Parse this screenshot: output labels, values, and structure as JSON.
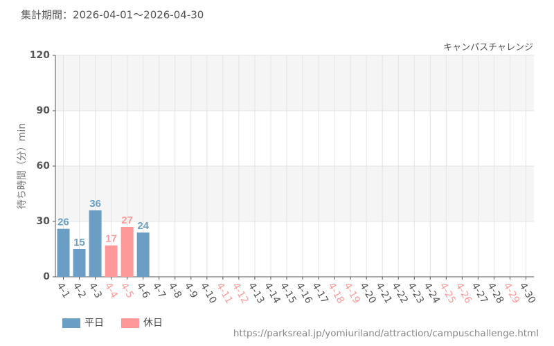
{
  "chart_data": {
    "type": "bar",
    "title": "集計期間：2026-04-01～2026-04-30",
    "subtitle": "キャンパスチャレンジ",
    "y_label": "待ち時間（分）min",
    "source": "https://parksreal.jp/yomiuriland/attraction/campuschallenge.html",
    "categories": [
      "4-1",
      "4-2",
      "4-3",
      "4-4",
      "4-5",
      "4-6",
      "4-7",
      "4-8",
      "4-9",
      "4-10",
      "4-11",
      "4-12",
      "4-13",
      "4-14",
      "4-15",
      "4-16",
      "4-17",
      "4-18",
      "4-19",
      "4-20",
      "4-21",
      "4-22",
      "4-23",
      "4-24",
      "4-25",
      "4-26",
      "4-27",
      "4-28",
      "4-29",
      "4-30"
    ],
    "category_label_colors": [
      "#555",
      "#555",
      "#555",
      "#ff9999",
      "#ff9999",
      "#555",
      "#555",
      "#555",
      "#555",
      "#555",
      "#ff9999",
      "#ff9999",
      "#555",
      "#555",
      "#555",
      "#555",
      "#555",
      "#ff9999",
      "#ff9999",
      "#555",
      "#555",
      "#555",
      "#555",
      "#555",
      "#ff9999",
      "#ff9999",
      "#555",
      "#555",
      "#ff9999",
      "#555"
    ],
    "series": [
      {
        "name": "平日",
        "color": "#6a9ec5",
        "values": [
          26,
          15,
          36,
          null,
          null,
          24,
          null,
          null,
          null,
          null,
          null,
          null,
          null,
          null,
          null,
          null,
          null,
          null,
          null,
          null,
          null,
          null,
          null,
          null,
          null,
          null,
          null,
          null,
          null,
          null
        ]
      },
      {
        "name": "休日",
        "color": "#ff9999",
        "values": [
          null,
          null,
          null,
          17,
          27,
          null,
          null,
          null,
          null,
          null,
          null,
          null,
          null,
          null,
          null,
          null,
          null,
          null,
          null,
          null,
          null,
          null,
          null,
          null,
          null,
          null,
          null,
          null,
          null,
          null
        ]
      }
    ],
    "ylim": [
      0,
      120
    ],
    "yticks": [
      0,
      30,
      60,
      90,
      120
    ],
    "grid": true,
    "banded": true,
    "legend": "bottom-left"
  }
}
